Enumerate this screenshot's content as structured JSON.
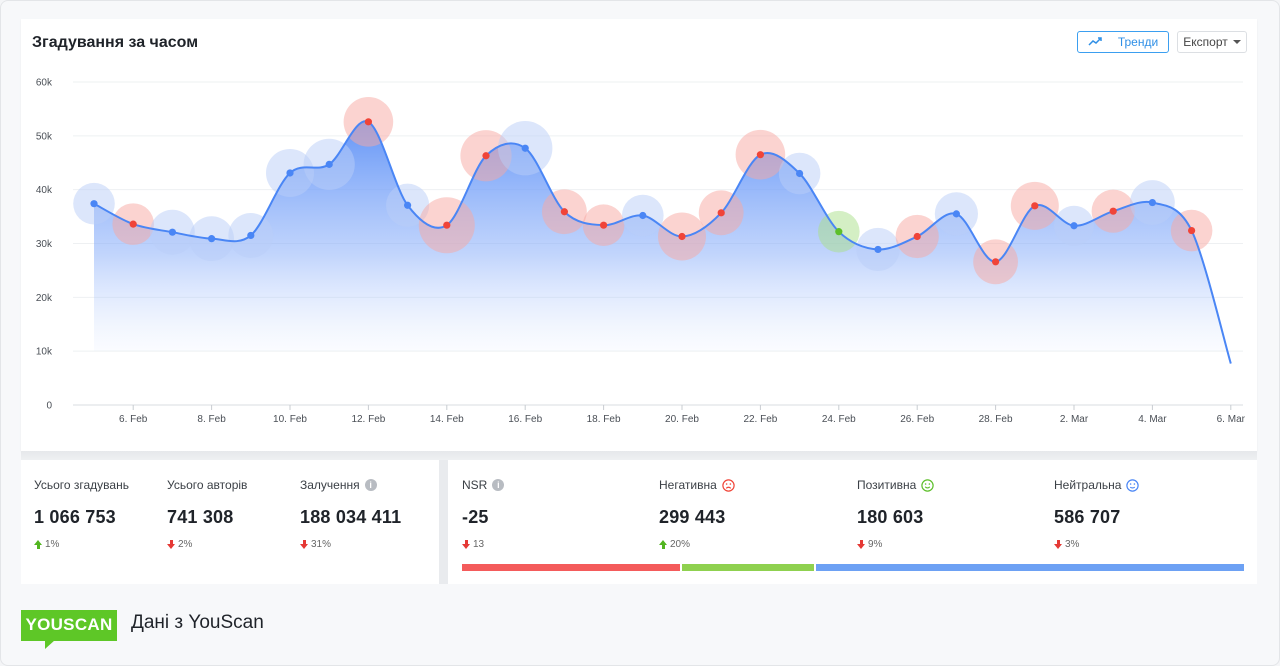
{
  "chart_panel": {
    "title": "Згадування за часом",
    "trends_label": "Тренди",
    "export_label": "Експорт"
  },
  "colors": {
    "line": "#4a86f5",
    "negative": "#f04438",
    "positive": "#5dbf2a",
    "neutral": "#4a86f5",
    "bar_negative": "#f45b5b",
    "bar_positive": "#8fd14f",
    "bar_neutral": "#6da1f4"
  },
  "chart_data": {
    "type": "area",
    "title": "Згадування за часом",
    "ylim": [
      0,
      60000
    ],
    "y_ticks": [
      {
        "value": 0,
        "label": "0"
      },
      {
        "value": 10000,
        "label": "10k"
      },
      {
        "value": 20000,
        "label": "20k"
      },
      {
        "value": 30000,
        "label": "30k"
      },
      {
        "value": 40000,
        "label": "40k"
      },
      {
        "value": 50000,
        "label": "50k"
      },
      {
        "value": 60000,
        "label": "60k"
      }
    ],
    "x_ticks": [
      {
        "index": 1,
        "label": "6. Feb"
      },
      {
        "index": 3,
        "label": "8. Feb"
      },
      {
        "index": 5,
        "label": "10. Feb"
      },
      {
        "index": 7,
        "label": "12. Feb"
      },
      {
        "index": 9,
        "label": "14. Feb"
      },
      {
        "index": 11,
        "label": "16. Feb"
      },
      {
        "index": 13,
        "label": "18. Feb"
      },
      {
        "index": 15,
        "label": "20. Feb"
      },
      {
        "index": 17,
        "label": "22. Feb"
      },
      {
        "index": 19,
        "label": "24. Feb"
      },
      {
        "index": 21,
        "label": "26. Feb"
      },
      {
        "index": 23,
        "label": "28. Feb"
      },
      {
        "index": 25,
        "label": "2. Mar"
      },
      {
        "index": 27,
        "label": "4. Mar"
      },
      {
        "index": 29,
        "label": "6. Mar"
      }
    ],
    "points": [
      {
        "date": "5. Feb",
        "value": 37400,
        "sentiment": "neutral",
        "bubble": 0.55
      },
      {
        "date": "6. Feb",
        "value": 33600,
        "sentiment": "negative",
        "bubble": 0.55
      },
      {
        "date": "7. Feb",
        "value": 32100,
        "sentiment": "neutral",
        "bubble": 0.65
      },
      {
        "date": "8. Feb",
        "value": 30900,
        "sentiment": "neutral",
        "bubble": 0.65
      },
      {
        "date": "9. Feb",
        "value": 31500,
        "sentiment": "neutral",
        "bubble": 0.65
      },
      {
        "date": "10. Feb",
        "value": 43100,
        "sentiment": "neutral",
        "bubble": 0.75
      },
      {
        "date": "11. Feb",
        "value": 44700,
        "sentiment": "neutral",
        "bubble": 0.85
      },
      {
        "date": "12. Feb",
        "value": 52600,
        "sentiment": "negative",
        "bubble": 0.8
      },
      {
        "date": "13. Feb",
        "value": 37100,
        "sentiment": "neutral",
        "bubble": 0.6
      },
      {
        "date": "14. Feb",
        "value": 33400,
        "sentiment": "negative",
        "bubble": 1.0
      },
      {
        "date": "15. Feb",
        "value": 46300,
        "sentiment": "negative",
        "bubble": 0.85
      },
      {
        "date": "16. Feb",
        "value": 47700,
        "sentiment": "neutral",
        "bubble": 0.95
      },
      {
        "date": "17. Feb",
        "value": 35900,
        "sentiment": "negative",
        "bubble": 0.65
      },
      {
        "date": "18. Feb",
        "value": 33400,
        "sentiment": "negative",
        "bubble": 0.55
      },
      {
        "date": "19. Feb",
        "value": 35200,
        "sentiment": "neutral",
        "bubble": 0.55
      },
      {
        "date": "20. Feb",
        "value": 31300,
        "sentiment": "negative",
        "bubble": 0.75
      },
      {
        "date": "21. Feb",
        "value": 35700,
        "sentiment": "negative",
        "bubble": 0.65
      },
      {
        "date": "22. Feb",
        "value": 46500,
        "sentiment": "negative",
        "bubble": 0.8
      },
      {
        "date": "23. Feb",
        "value": 43000,
        "sentiment": "neutral",
        "bubble": 0.55
      },
      {
        "date": "24. Feb",
        "value": 32200,
        "sentiment": "positive",
        "bubble": 0.55
      },
      {
        "date": "25. Feb",
        "value": 28900,
        "sentiment": "neutral",
        "bubble": 0.6
      },
      {
        "date": "26. Feb",
        "value": 31300,
        "sentiment": "negative",
        "bubble": 0.6
      },
      {
        "date": "27. Feb",
        "value": 35500,
        "sentiment": "neutral",
        "bubble": 0.6
      },
      {
        "date": "28. Feb",
        "value": 26600,
        "sentiment": "negative",
        "bubble": 0.65
      },
      {
        "date": "1. Mar",
        "value": 37000,
        "sentiment": "negative",
        "bubble": 0.75
      },
      {
        "date": "2. Mar",
        "value": 33300,
        "sentiment": "neutral",
        "bubble": 0.5
      },
      {
        "date": "3. Mar",
        "value": 36000,
        "sentiment": "negative",
        "bubble": 0.6
      },
      {
        "date": "4. Mar",
        "value": 37600,
        "sentiment": "neutral",
        "bubble": 0.65
      },
      {
        "date": "5. Mar",
        "value": 32400,
        "sentiment": "negative",
        "bubble": 0.55
      },
      {
        "date": "6. Mar",
        "value": 7700,
        "sentiment": "none",
        "bubble": 0
      }
    ]
  },
  "summary_left": [
    {
      "label": "Усього згадувань",
      "value": "1 066 753",
      "delta": "1%",
      "direction": "up",
      "info": false
    },
    {
      "label": "Усього авторів",
      "value": "741 308",
      "delta": "2%",
      "direction": "down",
      "info": false
    },
    {
      "label": "Залучення",
      "value": "188 034 411",
      "delta": "31%",
      "direction": "down",
      "info": true
    }
  ],
  "summary_right": [
    {
      "label": "NSR",
      "value": "-25",
      "delta": "13",
      "direction": "down",
      "icon": "info-icon"
    },
    {
      "label": "Негативна",
      "value": "299 443",
      "delta": "20%",
      "direction": "up",
      "icon": "sad-face-icon"
    },
    {
      "label": "Позитивна",
      "value": "180 603",
      "delta": "9%",
      "direction": "down",
      "icon": "happy-face-icon"
    },
    {
      "label": "Нейтральна",
      "value": "586 707",
      "delta": "3%",
      "direction": "down",
      "icon": "neutral-face-icon"
    }
  ],
  "sentiment_bar": {
    "negative_share": 0.2807,
    "positive_share": 0.1693,
    "neutral_share": 0.55
  },
  "footer": {
    "logo_text": "YOUSCAN",
    "caption": "Дані з YouScan"
  }
}
